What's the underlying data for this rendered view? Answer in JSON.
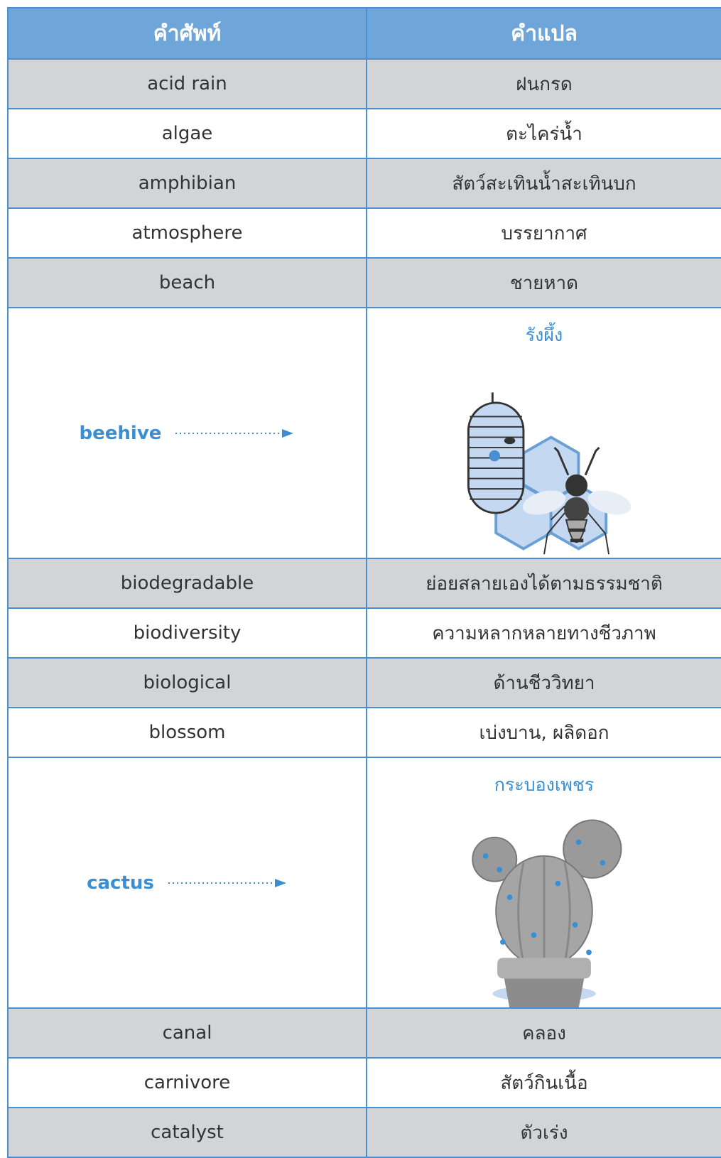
{
  "header": {
    "columns": [
      "คำศัพท์",
      "คำแปล"
    ]
  },
  "rows": [
    {
      "term": "acid rain",
      "translation": "ฝนกรด"
    },
    {
      "term": "algae",
      "translation": "ตะไคร่น้ำ"
    },
    {
      "term": "amphibian",
      "translation": "สัตว์สะเทินน้ำสะเทินบก"
    },
    {
      "term": "atmosphere",
      "translation": "บรรยากาศ"
    },
    {
      "term": "beach",
      "translation": "ชายหาด"
    },
    {
      "term": "beehive",
      "translation": "รังผึ้ง"
    },
    {
      "term": "biodegradable",
      "translation": "ย่อยสลายเองได้ตามธรรมชาติ"
    },
    {
      "term": "biodiversity",
      "translation": "ความหลากหลายทางชีวภาพ"
    },
    {
      "term": "biological",
      "translation": "ด้านชีววิทยา"
    },
    {
      "term": "blossom",
      "translation": "เบ่งบาน, ผลิดอก"
    },
    {
      "term": "cactus",
      "translation": "กระบองเพชร"
    },
    {
      "term": "canal",
      "translation": "คลอง"
    },
    {
      "term": "carnivore",
      "translation": "สัตว์กินเนื้อ"
    },
    {
      "term": "catalyst",
      "translation": "ตัวเร่ง"
    }
  ]
}
